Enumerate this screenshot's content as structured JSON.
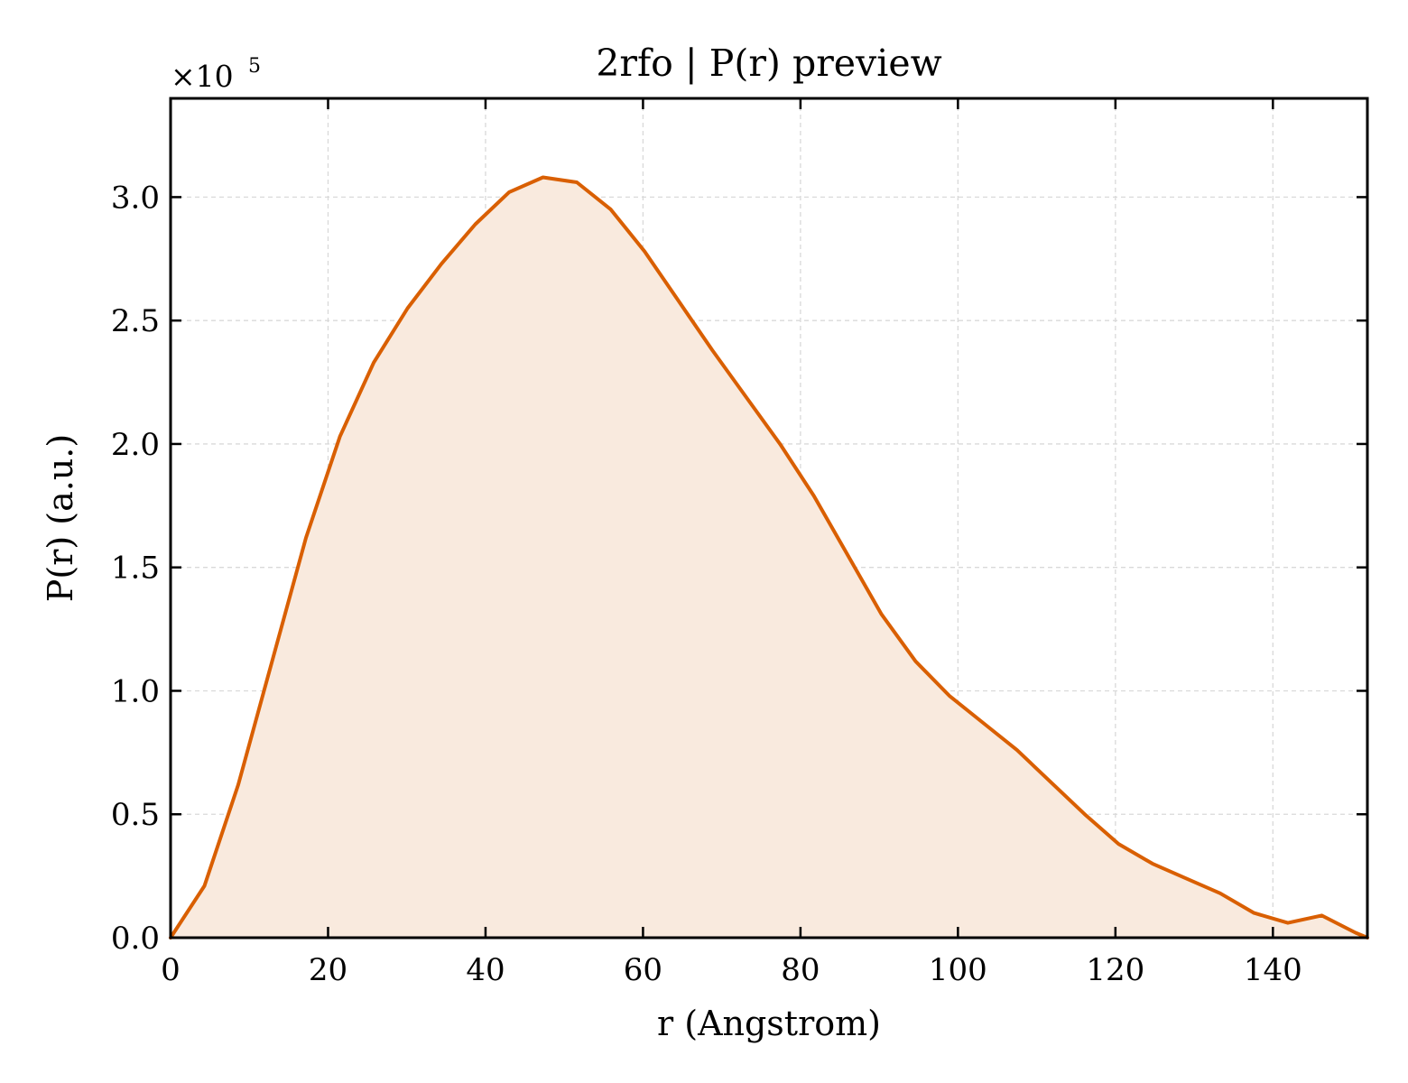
{
  "chart_data": {
    "type": "area",
    "title": "2rfo | P(r) preview",
    "xlabel": "r (Angstrom)",
    "ylabel": "P(r) (a.u.)",
    "y_scale_label": "×10",
    "y_scale_exponent": "5",
    "xlim": [
      0,
      152
    ],
    "ylim": [
      0,
      3.4
    ],
    "x_ticks": [
      0,
      20,
      40,
      60,
      80,
      100,
      120,
      140
    ],
    "x_tick_labels": [
      "0",
      "20",
      "40",
      "60",
      "80",
      "100",
      "120",
      "140"
    ],
    "y_ticks": [
      0,
      0.5,
      1.0,
      1.5,
      2.0,
      2.5,
      3.0
    ],
    "y_tick_labels": [
      "0.0",
      "0.5",
      "1.0",
      "1.5",
      "2.0",
      "2.5",
      "3.0"
    ],
    "grid": true,
    "line_color": "#d95f02",
    "fill_color": "#f9eade",
    "series": [
      {
        "x": [
          0,
          4.3,
          8.6,
          12.9,
          17.2,
          21.5,
          25.8,
          30.1,
          34.4,
          38.7,
          43.0,
          47.3,
          51.6,
          55.9,
          60.2,
          64.5,
          68.8,
          73.1,
          77.4,
          81.7,
          86.0,
          90.3,
          94.6,
          98.9,
          103.2,
          107.5,
          111.8,
          116.1,
          120.4,
          124.7,
          129.0,
          133.3,
          137.6,
          141.9,
          146.2,
          150.5,
          152
        ],
        "y": [
          0.0,
          0.21,
          0.62,
          1.12,
          1.62,
          2.03,
          2.33,
          2.55,
          2.73,
          2.89,
          3.02,
          3.08,
          3.06,
          2.95,
          2.78,
          2.58,
          2.38,
          2.19,
          2.0,
          1.79,
          1.55,
          1.31,
          1.12,
          0.98,
          0.87,
          0.76,
          0.63,
          0.5,
          0.38,
          0.3,
          0.24,
          0.18,
          0.1,
          0.06,
          0.09,
          0.02,
          0.0
        ]
      }
    ]
  }
}
